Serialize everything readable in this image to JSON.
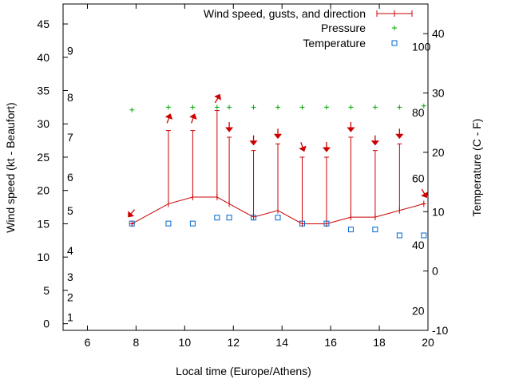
{
  "chart_data": {
    "type": "line",
    "title": "",
    "xlabel": "Local time (Europe/Athens)",
    "ylabel_left": "Wind speed (kt - Beaufort)",
    "ylabel_right": "Temperature (C - F)",
    "xlim": [
      5,
      20
    ],
    "ylim_left": [
      -1,
      48
    ],
    "ylim_right": [
      -10,
      45
    ],
    "x_ticks": [
      6,
      8,
      10,
      12,
      14,
      16,
      18,
      20
    ],
    "y_left_ticks": [
      0,
      5,
      10,
      15,
      20,
      25,
      30,
      35,
      40,
      45
    ],
    "y_right_ticks": [
      -10,
      0,
      10,
      20,
      30,
      40
    ],
    "beaufort_labels": [
      {
        "value": 1,
        "kt": 1
      },
      {
        "value": 2,
        "kt": 4
      },
      {
        "value": 3,
        "kt": 7
      },
      {
        "value": 4,
        "kt": 11
      },
      {
        "value": 5,
        "kt": 17
      },
      {
        "value": 6,
        "kt": 22
      },
      {
        "value": 7,
        "kt": 28
      },
      {
        "value": 8,
        "kt": 34
      },
      {
        "value": 9,
        "kt": 41
      }
    ],
    "fahrenheit_labels": [
      {
        "value": 20,
        "c": -6.7
      },
      {
        "value": 40,
        "c": 4.4
      },
      {
        "value": 60,
        "c": 15.6
      },
      {
        "value": 80,
        "c": 26.7
      },
      {
        "value": 100,
        "c": 37.8
      }
    ],
    "legend": {
      "position": "top-right",
      "entries": [
        "Wind speed, gusts, and direction",
        "Pressure",
        "Temperature"
      ]
    },
    "colors": {
      "wind": "#cc0000",
      "pressure": "#00aa00",
      "temperature": "#0066cc"
    },
    "series": [
      {
        "name": "Wind speed, gusts, and direction",
        "x": [
          7.83,
          9.33,
          10.33,
          11.33,
          11.83,
          12.83,
          13.83,
          14.83,
          15.83,
          16.83,
          17.83,
          18.83,
          19.83
        ],
        "speed": [
          15,
          18,
          19,
          19,
          18,
          16,
          17,
          15,
          15,
          16,
          16,
          17,
          18
        ],
        "gust": [
          15,
          29,
          29,
          32,
          28,
          26,
          27,
          25,
          25,
          28,
          26,
          27,
          18
        ],
        "direction_deg": [
          40,
          200,
          200,
          210,
          360,
          360,
          360,
          340,
          360,
          360,
          360,
          360,
          330
        ]
      },
      {
        "name": "Pressure",
        "x": [
          7.83,
          9.33,
          10.33,
          11.33,
          11.83,
          12.83,
          13.83,
          14.83,
          15.83,
          16.83,
          17.83,
          18.83,
          19.83
        ],
        "level": [
          32.1,
          32.5,
          32.5,
          32.5,
          32.5,
          32.5,
          32.5,
          32.5,
          32.5,
          32.5,
          32.5,
          32.5,
          32.7
        ]
      },
      {
        "name": "Temperature",
        "x": [
          7.83,
          9.33,
          10.33,
          11.33,
          11.83,
          12.83,
          13.83,
          14.83,
          15.83,
          16.83,
          17.83,
          18.83,
          19.83
        ],
        "values": [
          8,
          8,
          8,
          9,
          9,
          9,
          9,
          8,
          8,
          7,
          7,
          6,
          6
        ]
      }
    ]
  }
}
